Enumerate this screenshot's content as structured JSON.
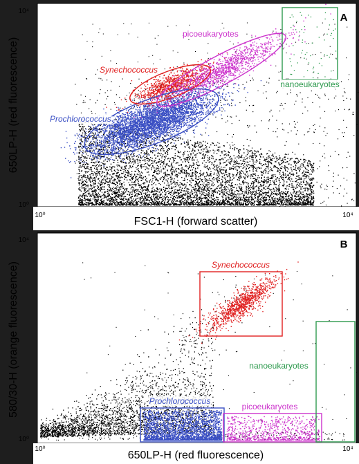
{
  "chart_data": [
    {
      "type": "scatter",
      "panel_label": "A",
      "xlabel": "FSC1-H (forward scatter)",
      "ylabel": "650LP-H (red fluorescence)",
      "xscale": "log",
      "yscale": "log",
      "xlim": [
        1,
        10000
      ],
      "ylim": [
        1,
        10000
      ],
      "x_tick_labels": [
        "10⁰",
        "10⁴"
      ],
      "y_tick_labels": [
        "10⁰",
        "10⁴"
      ],
      "grid": false,
      "series": [
        {
          "name": "Prochlorococcus",
          "color": "#3a4fc4",
          "gate": "ellipse",
          "center": [
            45,
            120
          ],
          "x_range": [
            12,
            300
          ],
          "y_range": [
            20,
            600
          ]
        },
        {
          "name": "Synechococcus",
          "color": "#e02020",
          "gate": "ellipse",
          "center": [
            120,
            1100
          ],
          "x_range": [
            30,
            550
          ],
          "y_range": [
            300,
            3500
          ]
        },
        {
          "name": "picoeukaryotes",
          "color": "#cc33cc",
          "gate": "ellipse",
          "center": [
            700,
            1900
          ],
          "x_range": [
            180,
            3300
          ],
          "y_range": [
            300,
            7500
          ]
        },
        {
          "name": "nanoeukaryotes",
          "color": "#2e9a4e",
          "gate": "rectangle",
          "center": [
            4200,
            3000
          ],
          "x_range": [
            2800,
            8200
          ],
          "y_range": [
            900,
            9900
          ]
        }
      ]
    },
    {
      "type": "scatter",
      "panel_label": "B",
      "xlabel": "650LP-H (red fluorescence)",
      "ylabel": "580/30-H (orange fluorescence)",
      "xscale": "log",
      "yscale": "log",
      "xlim": [
        1,
        10000
      ],
      "ylim": [
        1,
        10000
      ],
      "x_tick_labels": [
        "10⁰",
        "10⁴"
      ],
      "y_tick_labels": [
        "10⁰",
        "10⁴"
      ],
      "grid": false,
      "series": [
        {
          "name": "Synechococcus",
          "color": "#e02020",
          "gate": "rectangle",
          "center": [
            350,
            270
          ],
          "x_range": [
            80,
            1600
          ],
          "y_range": [
            55,
            1150
          ]
        },
        {
          "name": "Prochlorococcus",
          "color": "#3a4fc4",
          "gate": "rectangle",
          "center": [
            40,
            1.2
          ],
          "x_range": [
            7,
            250
          ],
          "y_range": [
            0.8,
            2.1
          ]
        },
        {
          "name": "picoeukaryotes",
          "color": "#cc33cc",
          "gate": "rectangle",
          "center": [
            900,
            1.2
          ],
          "x_range": [
            250,
            3200
          ],
          "y_range": [
            0.8,
            1.8
          ]
        },
        {
          "name": "nanoeukaryotes",
          "color": "#2e9a4e",
          "gate": "rectangle",
          "center": [
            5500,
            1.3
          ],
          "x_range": [
            4000,
            8800
          ],
          "y_range": [
            0.8,
            180
          ]
        }
      ]
    }
  ]
}
